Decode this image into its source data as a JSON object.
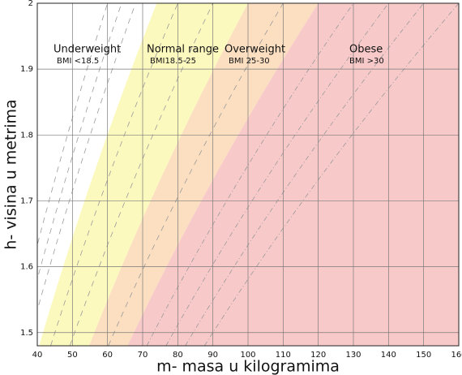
{
  "chart_data": {
    "type": "bmi-regions",
    "xlabel": "m- masa u kilogramima",
    "ylabel": "h- visina u metrima",
    "xlim": [
      40,
      160
    ],
    "xticks": [
      40,
      50,
      60,
      70,
      80,
      90,
      100,
      110,
      120,
      130,
      140,
      150,
      160
    ],
    "ylim": [
      1.48,
      2
    ],
    "yticks": [
      1.5,
      1.6,
      1.7,
      1.8,
      1.9,
      2
    ],
    "grid": true,
    "regions": [
      {
        "name": "Underweight",
        "label": "BMI <18.5",
        "bmi": [
          null,
          18.5
        ],
        "color": "#ffffff"
      },
      {
        "name": "Normal range",
        "label": "BMI18.5-25",
        "bmi": [
          18.5,
          25
        ],
        "color": "#fcf9bf"
      },
      {
        "name": "Overweight",
        "label": "BMI 25-30",
        "bmi": [
          25,
          30
        ],
        "color": "#fbdfc0"
      },
      {
        "name": "Obese",
        "label": "BMI >30",
        "bmi": [
          30,
          null
        ],
        "color": "#f8c9c9"
      }
    ],
    "dashed_bmi": [
      15,
      16,
      17,
      20,
      22.5,
      27.5,
      32.5,
      35,
      37.5,
      40
    ]
  }
}
